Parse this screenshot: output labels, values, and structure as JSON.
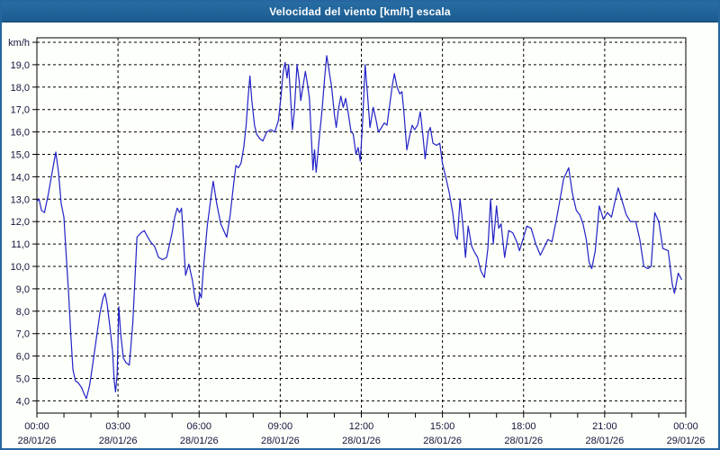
{
  "window": {
    "title": "Velocidad del viento [km/h] escala"
  },
  "colors": {
    "titlebar": "#1f6396",
    "frame": "#2566a0",
    "plot_background": "#fdfffa",
    "line": "#2222c8",
    "grid": "#000000",
    "text": "#14143c",
    "title_text": "#ffffff"
  },
  "chart_data": {
    "type": "line",
    "title": "Velocidad del viento [km/h] escala",
    "ylabel": "km/h",
    "ylim": [
      4,
      20
    ],
    "x_range_hours": [
      0,
      24
    ],
    "grid": true,
    "x_minor_tick_hours": 1,
    "y_ticks": [
      {
        "value": 20,
        "label": "km/h"
      },
      {
        "value": 19,
        "label": "19,0"
      },
      {
        "value": 18,
        "label": "18,0"
      },
      {
        "value": 17,
        "label": "17,0"
      },
      {
        "value": 16,
        "label": "16,0"
      },
      {
        "value": 15,
        "label": "15,0"
      },
      {
        "value": 14,
        "label": "14,0"
      },
      {
        "value": 13,
        "label": "13,0"
      },
      {
        "value": 12,
        "label": "12,0"
      },
      {
        "value": 11,
        "label": "11,0"
      },
      {
        "value": 10,
        "label": "10,0"
      },
      {
        "value": 9,
        "label": "9,0"
      },
      {
        "value": 8,
        "label": "8,0"
      },
      {
        "value": 7,
        "label": "7,0"
      },
      {
        "value": 6,
        "label": "6,0"
      },
      {
        "value": 5,
        "label": "5,0"
      },
      {
        "value": 4,
        "label": "4,0"
      }
    ],
    "x_ticks": [
      {
        "hour": 0,
        "time": "00:00",
        "date": "28/01/26"
      },
      {
        "hour": 3,
        "time": "03:00",
        "date": "28/01/26"
      },
      {
        "hour": 6,
        "time": "06:00",
        "date": "28/01/26"
      },
      {
        "hour": 9,
        "time": "09:00",
        "date": "28/01/26"
      },
      {
        "hour": 12,
        "time": "12:00",
        "date": "28/01/26"
      },
      {
        "hour": 15,
        "time": "15:00",
        "date": "28/01/26"
      },
      {
        "hour": 18,
        "time": "18:00",
        "date": "28/01/26"
      },
      {
        "hour": 21,
        "time": "21:00",
        "date": "28/01/26"
      },
      {
        "hour": 24,
        "time": "00:00",
        "date": "29/01/26"
      }
    ],
    "series": [
      {
        "name": "Velocidad del viento",
        "points": [
          [
            0.0,
            12.9
          ],
          [
            0.08,
            13.0
          ],
          [
            0.17,
            12.5
          ],
          [
            0.28,
            12.4
          ],
          [
            0.42,
            13.2
          ],
          [
            0.55,
            14.1
          ],
          [
            0.7,
            15.1
          ],
          [
            0.8,
            14.2
          ],
          [
            0.9,
            12.8
          ],
          [
            1.0,
            12.2
          ],
          [
            1.08,
            10.6
          ],
          [
            1.17,
            8.9
          ],
          [
            1.25,
            7.0
          ],
          [
            1.33,
            5.4
          ],
          [
            1.42,
            4.9
          ],
          [
            1.53,
            4.8
          ],
          [
            1.65,
            4.6
          ],
          [
            1.75,
            4.3
          ],
          [
            1.83,
            4.1
          ],
          [
            1.95,
            4.7
          ],
          [
            2.05,
            5.5
          ],
          [
            2.2,
            6.8
          ],
          [
            2.33,
            7.9
          ],
          [
            2.45,
            8.6
          ],
          [
            2.52,
            8.8
          ],
          [
            2.6,
            8.3
          ],
          [
            2.7,
            7.3
          ],
          [
            2.8,
            6.2
          ],
          [
            2.86,
            4.9
          ],
          [
            2.91,
            4.4
          ],
          [
            2.97,
            5.2
          ],
          [
            3.03,
            8.2
          ],
          [
            3.1,
            7.0
          ],
          [
            3.2,
            5.9
          ],
          [
            3.3,
            5.7
          ],
          [
            3.42,
            5.6
          ],
          [
            3.55,
            7.5
          ],
          [
            3.7,
            11.3
          ],
          [
            3.85,
            11.5
          ],
          [
            3.97,
            11.6
          ],
          [
            4.1,
            11.3
          ],
          [
            4.2,
            11.1
          ],
          [
            4.35,
            10.9
          ],
          [
            4.5,
            10.4
          ],
          [
            4.65,
            10.3
          ],
          [
            4.8,
            10.4
          ],
          [
            5.0,
            11.5
          ],
          [
            5.1,
            12.2
          ],
          [
            5.19,
            12.6
          ],
          [
            5.28,
            12.4
          ],
          [
            5.35,
            12.6
          ],
          [
            5.5,
            9.6
          ],
          [
            5.62,
            10.1
          ],
          [
            5.75,
            9.4
          ],
          [
            5.86,
            8.5
          ],
          [
            5.95,
            8.2
          ],
          [
            6.02,
            8.8
          ],
          [
            6.08,
            8.6
          ],
          [
            6.15,
            9.8
          ],
          [
            6.3,
            11.8
          ],
          [
            6.45,
            13.2
          ],
          [
            6.52,
            13.8
          ],
          [
            6.65,
            12.8
          ],
          [
            6.8,
            11.9
          ],
          [
            6.91,
            11.6
          ],
          [
            7.02,
            11.3
          ],
          [
            7.15,
            12.3
          ],
          [
            7.25,
            13.4
          ],
          [
            7.36,
            14.5
          ],
          [
            7.45,
            14.4
          ],
          [
            7.55,
            14.6
          ],
          [
            7.65,
            15.3
          ],
          [
            7.74,
            16.3
          ],
          [
            7.81,
            17.5
          ],
          [
            7.88,
            18.5
          ],
          [
            7.95,
            17.4
          ],
          [
            8.05,
            16.3
          ],
          [
            8.13,
            15.9
          ],
          [
            8.25,
            15.7
          ],
          [
            8.36,
            15.6
          ],
          [
            8.5,
            16.0
          ],
          [
            8.65,
            16.1
          ],
          [
            8.8,
            16.0
          ],
          [
            8.93,
            16.5
          ],
          [
            9.02,
            17.5
          ],
          [
            9.1,
            18.6
          ],
          [
            9.18,
            19.1
          ],
          [
            9.25,
            18.4
          ],
          [
            9.31,
            19.0
          ],
          [
            9.38,
            17.6
          ],
          [
            9.45,
            16.1
          ],
          [
            9.52,
            16.9
          ],
          [
            9.62,
            19.0
          ],
          [
            9.7,
            18.3
          ],
          [
            9.76,
            17.4
          ],
          [
            9.85,
            18.1
          ],
          [
            9.93,
            18.7
          ],
          [
            10.0,
            18.2
          ],
          [
            10.08,
            17.5
          ],
          [
            10.15,
            15.8
          ],
          [
            10.21,
            14.3
          ],
          [
            10.27,
            15.2
          ],
          [
            10.33,
            14.2
          ],
          [
            10.45,
            15.8
          ],
          [
            10.55,
            17.0
          ],
          [
            10.65,
            18.5
          ],
          [
            10.72,
            19.4
          ],
          [
            10.8,
            18.8
          ],
          [
            10.9,
            18.0
          ],
          [
            11.0,
            16.8
          ],
          [
            11.07,
            16.2
          ],
          [
            11.15,
            17.0
          ],
          [
            11.24,
            17.6
          ],
          [
            11.33,
            17.1
          ],
          [
            11.42,
            17.5
          ],
          [
            11.52,
            16.8
          ],
          [
            11.62,
            16.0
          ],
          [
            11.7,
            15.9
          ],
          [
            11.8,
            15.0
          ],
          [
            11.88,
            15.3
          ],
          [
            11.96,
            14.7
          ],
          [
            12.05,
            16.5
          ],
          [
            12.14,
            19.0
          ],
          [
            12.22,
            17.8
          ],
          [
            12.32,
            16.2
          ],
          [
            12.44,
            17.1
          ],
          [
            12.55,
            16.5
          ],
          [
            12.63,
            16.0
          ],
          [
            12.75,
            16.2
          ],
          [
            12.85,
            16.4
          ],
          [
            12.95,
            16.3
          ],
          [
            13.05,
            17.2
          ],
          [
            13.15,
            18.1
          ],
          [
            13.22,
            18.6
          ],
          [
            13.32,
            18.0
          ],
          [
            13.42,
            17.7
          ],
          [
            13.5,
            17.8
          ],
          [
            13.58,
            16.8
          ],
          [
            13.68,
            15.2
          ],
          [
            13.8,
            15.9
          ],
          [
            13.88,
            16.3
          ],
          [
            13.97,
            16.1
          ],
          [
            14.08,
            16.3
          ],
          [
            14.18,
            16.9
          ],
          [
            14.28,
            15.8
          ],
          [
            14.36,
            14.8
          ],
          [
            14.48,
            16.0
          ],
          [
            14.55,
            16.2
          ],
          [
            14.65,
            15.5
          ],
          [
            14.78,
            15.4
          ],
          [
            14.9,
            15.5
          ],
          [
            15.0,
            14.6
          ],
          [
            15.12,
            14.0
          ],
          [
            15.25,
            13.3
          ],
          [
            15.38,
            12.4
          ],
          [
            15.48,
            11.4
          ],
          [
            15.55,
            11.2
          ],
          [
            15.65,
            13.0
          ],
          [
            15.75,
            11.9
          ],
          [
            15.85,
            10.4
          ],
          [
            15.95,
            11.8
          ],
          [
            16.08,
            10.9
          ],
          [
            16.2,
            10.6
          ],
          [
            16.3,
            10.4
          ],
          [
            16.42,
            9.8
          ],
          [
            16.55,
            9.5
          ],
          [
            16.68,
            10.8
          ],
          [
            16.78,
            13.0
          ],
          [
            16.88,
            11.0
          ],
          [
            17.0,
            12.7
          ],
          [
            17.08,
            11.7
          ],
          [
            17.17,
            11.9
          ],
          [
            17.3,
            10.4
          ],
          [
            17.45,
            11.6
          ],
          [
            17.6,
            11.5
          ],
          [
            17.75,
            11.1
          ],
          [
            17.85,
            10.7
          ],
          [
            18.0,
            11.3
          ],
          [
            18.12,
            11.8
          ],
          [
            18.28,
            11.7
          ],
          [
            18.45,
            11.0
          ],
          [
            18.62,
            10.5
          ],
          [
            18.78,
            10.9
          ],
          [
            18.9,
            11.2
          ],
          [
            19.05,
            11.1
          ],
          [
            19.2,
            12.0
          ],
          [
            19.35,
            13.0
          ],
          [
            19.48,
            13.9
          ],
          [
            19.67,
            14.4
          ],
          [
            19.8,
            13.3
          ],
          [
            19.95,
            12.5
          ],
          [
            20.08,
            12.3
          ],
          [
            20.2,
            11.9
          ],
          [
            20.32,
            11.2
          ],
          [
            20.42,
            10.2
          ],
          [
            20.52,
            9.9
          ],
          [
            20.65,
            10.7
          ],
          [
            20.8,
            12.7
          ],
          [
            20.95,
            12.1
          ],
          [
            21.1,
            12.4
          ],
          [
            21.25,
            12.2
          ],
          [
            21.4,
            13.0
          ],
          [
            21.5,
            13.5
          ],
          [
            21.65,
            12.9
          ],
          [
            21.8,
            12.3
          ],
          [
            21.95,
            12.0
          ],
          [
            22.15,
            12.0
          ],
          [
            22.3,
            11.2
          ],
          [
            22.45,
            10.0
          ],
          [
            22.6,
            9.9
          ],
          [
            22.72,
            10.0
          ],
          [
            22.85,
            12.4
          ],
          [
            23.0,
            12.0
          ],
          [
            23.15,
            10.8
          ],
          [
            23.35,
            10.7
          ],
          [
            23.5,
            9.2
          ],
          [
            23.58,
            8.8
          ],
          [
            23.72,
            9.7
          ],
          [
            23.85,
            9.4
          ]
        ]
      }
    ]
  }
}
